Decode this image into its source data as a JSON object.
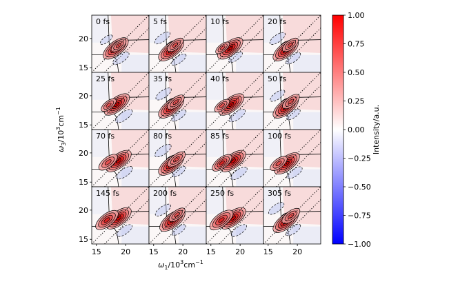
{
  "chart_data": {
    "type": "heatmap",
    "layout": {
      "rows": 4,
      "cols": 4
    },
    "panels": [
      {
        "label": "0 fs",
        "peaks": [
          {
            "x": 18.3,
            "y": 18.3,
            "a": 1.0
          },
          {
            "x": 18.8,
            "y": 18.8,
            "a": 0.35
          }
        ],
        "negatives": [
          {
            "x": 19.2,
            "y": 16.6,
            "a": -0.35
          },
          {
            "x": 16.7,
            "y": 19.8,
            "a": -0.1
          }
        ]
      },
      {
        "label": "5 fs",
        "peaks": [
          {
            "x": 18.0,
            "y": 18.0,
            "a": 1.0
          },
          {
            "x": 18.7,
            "y": 18.9,
            "a": 0.4
          }
        ],
        "negatives": [
          {
            "x": 16.5,
            "y": 20.1,
            "a": -0.3
          },
          {
            "x": 19.3,
            "y": 16.4,
            "a": -0.25
          }
        ]
      },
      {
        "label": "10 fs",
        "peaks": [
          {
            "x": 18.3,
            "y": 18.3,
            "a": 1.0
          },
          {
            "x": 17.0,
            "y": 18.4,
            "a": 0.3
          }
        ],
        "negatives": [
          {
            "x": 19.2,
            "y": 16.8,
            "a": -0.2
          }
        ]
      },
      {
        "label": "20 fs",
        "peaks": [
          {
            "x": 18.0,
            "y": 18.0,
            "a": 1.0
          },
          {
            "x": 18.8,
            "y": 18.9,
            "a": 0.4
          }
        ],
        "negatives": [
          {
            "x": 16.6,
            "y": 20.0,
            "a": -0.3
          },
          {
            "x": 19.3,
            "y": 16.6,
            "a": -0.25
          }
        ]
      },
      {
        "label": "25 fs",
        "peaks": [
          {
            "x": 18.5,
            "y": 18.5,
            "a": 1.0
          },
          {
            "x": 17.1,
            "y": 18.4,
            "a": 0.35
          }
        ],
        "negatives": [
          {
            "x": 19.7,
            "y": 16.5,
            "a": -0.4
          }
        ]
      },
      {
        "label": "35 fs",
        "peaks": [
          {
            "x": 18.0,
            "y": 18.0,
            "a": 1.0
          },
          {
            "x": 18.8,
            "y": 18.9,
            "a": 0.45
          }
        ],
        "negatives": [
          {
            "x": 16.7,
            "y": 20.3,
            "a": -0.3
          },
          {
            "x": 19.3,
            "y": 16.6,
            "a": -0.25
          }
        ]
      },
      {
        "label": "40 fs",
        "peaks": [
          {
            "x": 18.5,
            "y": 18.5,
            "a": 1.0
          },
          {
            "x": 16.9,
            "y": 18.3,
            "a": 0.35
          }
        ],
        "negatives": [
          {
            "x": 19.5,
            "y": 16.6,
            "a": -0.35
          }
        ]
      },
      {
        "label": "50 fs",
        "peaks": [
          {
            "x": 18.0,
            "y": 18.0,
            "a": 1.0
          },
          {
            "x": 18.9,
            "y": 19.0,
            "a": 0.45
          }
        ],
        "negatives": [
          {
            "x": 16.6,
            "y": 20.0,
            "a": -0.25
          },
          {
            "x": 19.3,
            "y": 16.8,
            "a": -0.2
          }
        ]
      },
      {
        "label": "70 fs",
        "peaks": [
          {
            "x": 18.8,
            "y": 18.6,
            "a": 1.0
          },
          {
            "x": 17.0,
            "y": 18.4,
            "a": 0.55
          }
        ],
        "negatives": [
          {
            "x": 19.8,
            "y": 16.6,
            "a": -0.35
          }
        ]
      },
      {
        "label": "80 fs",
        "peaks": [
          {
            "x": 18.0,
            "y": 18.0,
            "a": 1.0
          },
          {
            "x": 18.9,
            "y": 18.9,
            "a": 0.5
          }
        ],
        "negatives": [
          {
            "x": 16.6,
            "y": 20.4,
            "a": -0.35
          },
          {
            "x": 19.3,
            "y": 16.8,
            "a": -0.2
          }
        ]
      },
      {
        "label": "85 fs",
        "peaks": [
          {
            "x": 18.8,
            "y": 18.6,
            "a": 1.0
          },
          {
            "x": 16.9,
            "y": 18.3,
            "a": 0.6
          }
        ],
        "negatives": [
          {
            "x": 19.8,
            "y": 16.5,
            "a": -0.35
          }
        ]
      },
      {
        "label": "100 fs",
        "peaks": [
          {
            "x": 18.2,
            "y": 18.2,
            "a": 1.0
          },
          {
            "x": 16.8,
            "y": 18.2,
            "a": 0.45
          }
        ],
        "negatives": [
          {
            "x": 19.5,
            "y": 16.6,
            "a": -0.3
          }
        ]
      },
      {
        "label": "145 fs",
        "peaks": [
          {
            "x": 18.8,
            "y": 18.6,
            "a": 1.0
          },
          {
            "x": 16.8,
            "y": 18.3,
            "a": 0.8
          }
        ],
        "negatives": [
          {
            "x": 19.8,
            "y": 16.5,
            "a": -0.3
          }
        ]
      },
      {
        "label": "200 fs",
        "peaks": [
          {
            "x": 18.2,
            "y": 18.2,
            "a": 1.0
          },
          {
            "x": 19.0,
            "y": 19.2,
            "a": 0.4
          }
        ],
        "negatives": [
          {
            "x": 16.6,
            "y": 20.0,
            "a": -0.3
          },
          {
            "x": 19.3,
            "y": 16.6,
            "a": -0.2
          }
        ]
      },
      {
        "label": "250 fs",
        "peaks": [
          {
            "x": 18.8,
            "y": 18.6,
            "a": 1.0
          },
          {
            "x": 16.8,
            "y": 18.3,
            "a": 0.85
          }
        ],
        "negatives": [
          {
            "x": 19.8,
            "y": 16.5,
            "a": -0.3
          }
        ]
      },
      {
        "label": "305 fs",
        "peaks": [
          {
            "x": 18.0,
            "y": 18.0,
            "a": 1.0
          },
          {
            "x": 18.9,
            "y": 19.0,
            "a": 0.5
          }
        ],
        "negatives": [
          {
            "x": 16.4,
            "y": 20.3,
            "a": -0.3
          },
          {
            "x": 19.3,
            "y": 16.6,
            "a": -0.25
          }
        ]
      }
    ],
    "x_range": [
      14.2,
      24.0
    ],
    "y_range": [
      14.2,
      24.0
    ],
    "x_ticks": [
      "15",
      "20"
    ],
    "y_ticks": [
      "15",
      "20"
    ],
    "xlabel_sym": "ω",
    "xlabel_sub": "1",
    "xlabel_mid": "/10",
    "xlabel_sup": "3",
    "xlabel_unit": "cm",
    "xlabel_unit_sup": "−1",
    "ylabel_sym": "ω",
    "ylabel_sub": "3",
    "ylabel_mid": "/10",
    "ylabel_sup": "3",
    "ylabel_unit": "cm",
    "ylabel_unit_sup": "−1",
    "colorbar": {
      "ticks": [
        "1.00",
        "0.75",
        "0.50",
        "0.25",
        "0.00",
        "−0.25",
        "−0.50",
        "−0.75",
        "−1.00"
      ],
      "label": "Intensity/a.u.",
      "colors": {
        "low": "#0000ff",
        "mid": "#ffffff",
        "high": "#ff0000"
      }
    },
    "diagonal_line": "dotted",
    "contour_colors": {
      "positive": "#000000",
      "negative": "#000000"
    }
  }
}
